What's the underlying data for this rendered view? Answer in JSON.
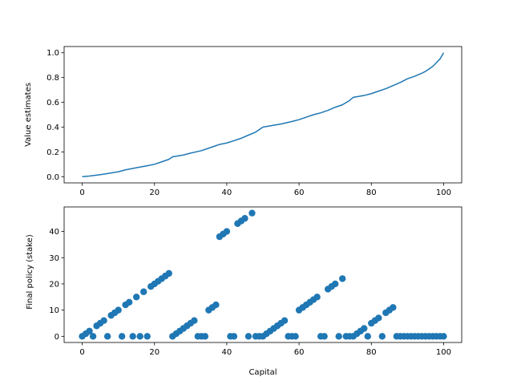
{
  "chart_data": [
    {
      "type": "line",
      "title": "",
      "xlabel": "",
      "ylabel": "Value estimates",
      "xlim": [
        -5,
        105
      ],
      "ylim": [
        -0.05,
        1.05
      ],
      "xticks": [
        0,
        20,
        40,
        60,
        80,
        100
      ],
      "yticks": [
        0.0,
        0.2,
        0.4,
        0.6,
        0.8,
        1.0
      ],
      "xtick_labels": [
        "0",
        "20",
        "40",
        "60",
        "80",
        "100"
      ],
      "ytick_labels": [
        "0.0",
        "0.2",
        "0.4",
        "0.6",
        "0.8",
        "1.0"
      ],
      "grid": false,
      "color": "#1f77b4",
      "series": [
        {
          "x": [
            0,
            2,
            5,
            8,
            10,
            12,
            15,
            18,
            20,
            22,
            24,
            25,
            28,
            30,
            33,
            35,
            37,
            38,
            40,
            42,
            44,
            46,
            48,
            50,
            53,
            55,
            58,
            60,
            62,
            64,
            66,
            68,
            70,
            72,
            74,
            75,
            78,
            80,
            82,
            84,
            86,
            88,
            90,
            92,
            94,
            95,
            96,
            97,
            98,
            99,
            100
          ],
          "y": [
            0.0,
            0.005,
            0.016,
            0.03,
            0.04,
            0.055,
            0.072,
            0.088,
            0.1,
            0.12,
            0.14,
            0.16,
            0.175,
            0.19,
            0.21,
            0.23,
            0.25,
            0.26,
            0.272,
            0.29,
            0.31,
            0.335,
            0.36,
            0.4,
            0.415,
            0.425,
            0.445,
            0.46,
            0.48,
            0.5,
            0.515,
            0.535,
            0.56,
            0.58,
            0.615,
            0.64,
            0.655,
            0.67,
            0.69,
            0.71,
            0.735,
            0.76,
            0.79,
            0.81,
            0.835,
            0.85,
            0.87,
            0.89,
            0.92,
            0.95,
            1.0
          ]
        }
      ]
    },
    {
      "type": "scatter",
      "title": "",
      "xlabel": "Capital",
      "ylabel": "Final policy (stake)",
      "xlim": [
        -5,
        105
      ],
      "ylim": [
        -2.35,
        49.35
      ],
      "xticks": [
        0,
        20,
        40,
        60,
        80,
        100
      ],
      "yticks": [
        0,
        10,
        20,
        30,
        40
      ],
      "xtick_labels": [
        "0",
        "20",
        "40",
        "60",
        "80",
        "100"
      ],
      "ytick_labels": [
        "0",
        "10",
        "20",
        "30",
        "40"
      ],
      "grid": false,
      "color": "#1f77b4",
      "series": [
        {
          "x": [
            0,
            1,
            2,
            3,
            4,
            5,
            6,
            7,
            8,
            9,
            10,
            11,
            12,
            13,
            14,
            15,
            16,
            17,
            18,
            19,
            20,
            21,
            22,
            23,
            24,
            25,
            26,
            27,
            28,
            29,
            30,
            31,
            32,
            33,
            34,
            35,
            36,
            37,
            38,
            39,
            40,
            41,
            42,
            43,
            44,
            45,
            46,
            47,
            48,
            49,
            50,
            51,
            52,
            53,
            54,
            55,
            56,
            57,
            58,
            59,
            60,
            61,
            62,
            63,
            64,
            65,
            66,
            67,
            68,
            69,
            70,
            71,
            72,
            73,
            74,
            75,
            76,
            77,
            78,
            79,
            80,
            81,
            82,
            83,
            84,
            85,
            86,
            87,
            88,
            89,
            90,
            91,
            92,
            93,
            94,
            95,
            96,
            97,
            98,
            99,
            100
          ],
          "y": [
            0,
            1,
            2,
            0,
            4,
            5,
            6,
            0,
            8,
            9,
            10,
            0,
            12,
            13,
            0,
            15,
            0,
            17,
            0,
            19,
            20,
            21,
            22,
            23,
            24,
            0,
            1,
            2,
            3,
            4,
            5,
            6,
            0,
            0,
            0,
            10,
            11,
            12,
            38,
            39,
            40,
            0,
            0,
            43,
            44,
            45,
            0,
            47,
            0,
            0,
            0,
            1,
            2,
            3,
            4,
            5,
            6,
            0,
            0,
            0,
            10,
            11,
            12,
            13,
            14,
            15,
            0,
            0,
            18,
            19,
            20,
            0,
            22,
            0,
            0,
            0,
            1,
            2,
            3,
            0,
            5,
            6,
            7,
            0,
            9,
            10,
            11,
            0,
            0,
            0,
            0,
            0,
            0,
            0,
            0,
            0,
            0,
            0,
            0,
            0,
            0
          ]
        }
      ]
    }
  ]
}
